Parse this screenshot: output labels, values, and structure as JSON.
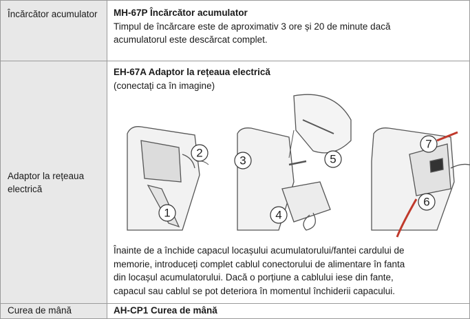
{
  "table": {
    "rows": [
      {
        "label": "Încărcător acumulator",
        "title": "MH-67P Încărcător acumulator",
        "lines": [
          "Timpul de încărcare este de aproximativ 3 ore și 20 de minute dacă",
          "acumulatorul este descărcat complet."
        ]
      },
      {
        "label": "Adaptor la rețeaua electrică",
        "title": "EH-67A Adaptor la rețeaua electrică",
        "subtitle": "(conectați ca în imagine)",
        "callouts": [
          "1",
          "2",
          "3",
          "4",
          "5",
          "6",
          "7"
        ],
        "lines": [
          "Înainte de a închide capacul locașului acumulatorului/fantei cardului de",
          "memorie, introduceți complet cablul conectorului de alimentare în fanta",
          "din locașul acumulatorului. Dacă o porțiune a cablului iese din fante,",
          "capacul sau cablul se pot deteriora în momentul închiderii capacului."
        ]
      },
      {
        "label": "Curea de mână",
        "title": "AH-CP1 Curea de mână"
      }
    ]
  }
}
